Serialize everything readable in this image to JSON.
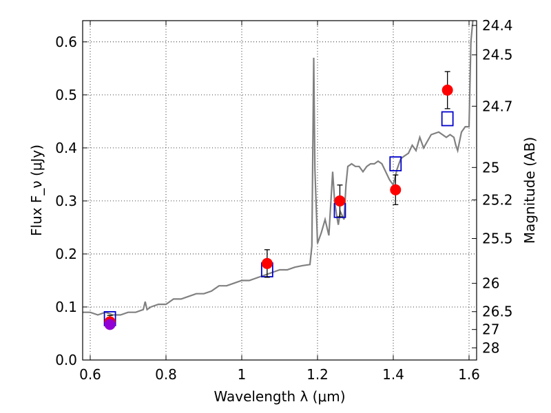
{
  "chart_data": {
    "type": "scatter",
    "xlabel": "Wavelength λ (μm)",
    "ylabel": "Flux F_ν (μJy)",
    "ylabel_right": "Magnitude (AB)",
    "xlim": [
      0.58,
      1.62
    ],
    "ylim": [
      0.0,
      0.64
    ],
    "x_ticks": [
      0.6,
      0.8,
      1.0,
      1.2,
      1.4,
      1.6
    ],
    "x_tick_labels": [
      "0.6",
      "0.8",
      "1",
      "1.2",
      "1.4",
      "1.6"
    ],
    "y_ticks": [
      0.0,
      0.1,
      0.2,
      0.3,
      0.4,
      0.5,
      0.6
    ],
    "y_tick_labels": [
      "0.0",
      "0.1",
      "0.2",
      "0.3",
      "0.4",
      "0.5",
      "0.6"
    ],
    "right_ticks": [
      24.4,
      24.5,
      24.7,
      25,
      25.2,
      25.5,
      26,
      26.5,
      27,
      28
    ],
    "right_tick_labels": [
      "24.4",
      "24.5",
      "24.7",
      "25",
      "25.2",
      "25.5",
      "26",
      "26.5",
      "27",
      "28"
    ],
    "grid": true,
    "series": [
      {
        "kind": "line",
        "color": "#808080",
        "x": [
          0.58,
          0.6,
          0.62,
          0.64,
          0.66,
          0.68,
          0.7,
          0.72,
          0.74,
          0.745,
          0.75,
          0.76,
          0.78,
          0.8,
          0.82,
          0.84,
          0.86,
          0.88,
          0.9,
          0.92,
          0.94,
          0.96,
          0.98,
          1.0,
          1.02,
          1.04,
          1.06,
          1.08,
          1.1,
          1.12,
          1.14,
          1.16,
          1.18,
          1.185,
          1.19,
          1.193,
          1.2,
          1.21,
          1.22,
          1.23,
          1.24,
          1.245,
          1.25,
          1.255,
          1.26,
          1.27,
          1.275,
          1.28,
          1.29,
          1.3,
          1.31,
          1.32,
          1.33,
          1.34,
          1.35,
          1.36,
          1.37,
          1.38,
          1.39,
          1.4,
          1.41,
          1.42,
          1.43,
          1.44,
          1.45,
          1.46,
          1.47,
          1.48,
          1.5,
          1.52,
          1.54,
          1.55,
          1.56,
          1.565,
          1.57,
          1.58,
          1.59,
          1.6,
          1.605,
          1.61
        ],
        "y": [
          0.09,
          0.09,
          0.085,
          0.09,
          0.085,
          0.085,
          0.09,
          0.09,
          0.095,
          0.11,
          0.095,
          0.1,
          0.105,
          0.105,
          0.115,
          0.115,
          0.12,
          0.125,
          0.125,
          0.13,
          0.14,
          0.14,
          0.145,
          0.15,
          0.15,
          0.155,
          0.16,
          0.165,
          0.17,
          0.17,
          0.175,
          0.178,
          0.18,
          0.215,
          0.57,
          0.36,
          0.22,
          0.24,
          0.265,
          0.235,
          0.355,
          0.3,
          0.275,
          0.255,
          0.28,
          0.265,
          0.33,
          0.365,
          0.37,
          0.365,
          0.365,
          0.355,
          0.365,
          0.37,
          0.37,
          0.375,
          0.37,
          0.355,
          0.34,
          0.33,
          0.36,
          0.38,
          0.385,
          0.39,
          0.405,
          0.395,
          0.42,
          0.4,
          0.425,
          0.43,
          0.42,
          0.425,
          0.42,
          0.405,
          0.395,
          0.43,
          0.44,
          0.44,
          0.6,
          0.64
        ]
      },
      {
        "kind": "observed",
        "color": "#ff0000",
        "x": [
          0.652,
          1.067,
          1.259,
          1.406,
          1.543
        ],
        "y": [
          0.072,
          0.182,
          0.3,
          0.321,
          0.509
        ],
        "yerr": [
          0.012,
          0.026,
          0.03,
          0.028,
          0.035
        ]
      },
      {
        "kind": "model",
        "color": "#0000cc",
        "x": [
          0.652,
          1.067,
          1.259,
          1.406,
          1.543
        ],
        "y": [
          0.078,
          0.17,
          0.282,
          0.37,
          0.455
        ]
      },
      {
        "kind": "upper-point",
        "color": "#9400d3",
        "x": [
          0.652
        ],
        "y": [
          0.067
        ]
      }
    ]
  }
}
